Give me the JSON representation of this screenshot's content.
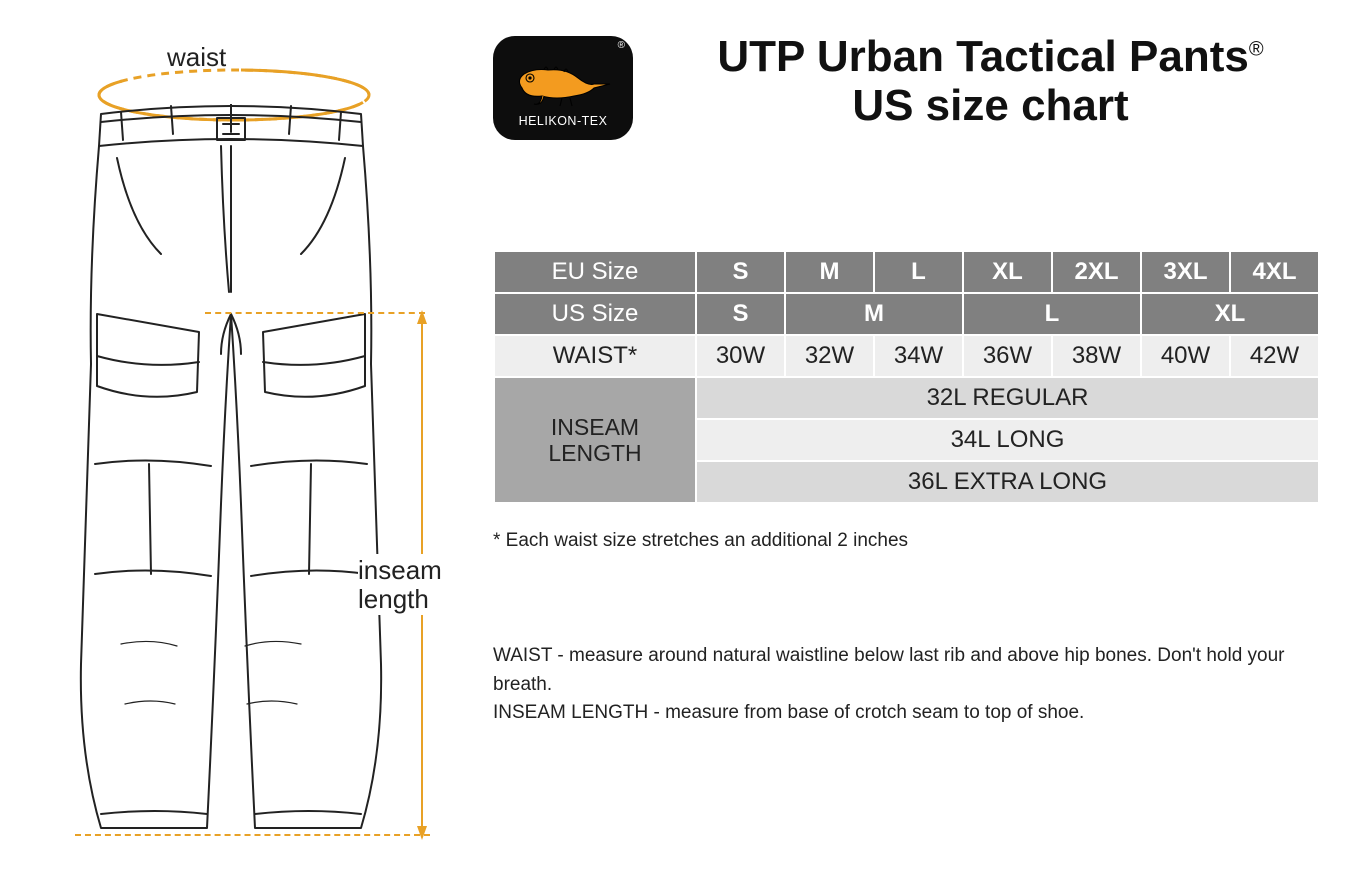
{
  "colors": {
    "accent": "#e8a126",
    "bg": "#ffffff",
    "text": "#222222",
    "table_header_bg": "#808080",
    "table_header_fg": "#ffffff",
    "table_light_bg": "#eeeeee",
    "table_mid_bg": "#d9d9d9",
    "table_label_bg": "#a7a7a7",
    "badge_bg": "#0d0d0d",
    "badge_fg": "#ffffff",
    "lizard_fill": "#f39b1f"
  },
  "diagram": {
    "waist_label": "waist",
    "inseam_label_line1": "inseam",
    "inseam_label_line2": "length"
  },
  "brand": {
    "name": "HELIKON-TEX",
    "registered": "®"
  },
  "title": {
    "line1_before_reg": "UTP Urban Tactical Pants",
    "reg": "®",
    "line2": "US size chart"
  },
  "table": {
    "label_eu": "EU Size",
    "label_us": "US Size",
    "label_waist": "WAIST*",
    "label_inseam_line1": "INSEAM",
    "label_inseam_line2": "LENGTH",
    "eu_sizes": [
      "S",
      "M",
      "L",
      "XL",
      "2XL",
      "3XL",
      "4XL"
    ],
    "us_sizes": [
      {
        "label": "S",
        "span": 1
      },
      {
        "label": "M",
        "span": 2
      },
      {
        "label": "L",
        "span": 2
      },
      {
        "label": "XL",
        "span": 2
      }
    ],
    "waist": [
      "30W",
      "32W",
      "34W",
      "36W",
      "38W",
      "40W",
      "42W"
    ],
    "inseam_rows": [
      "32L REGULAR",
      "34L LONG",
      "36L EXTRA LONG"
    ]
  },
  "footnote": "* Each waist size stretches an additional 2 inches",
  "instructions": {
    "waist": "WAIST - measure around natural waistline below last rib and above hip bones. Don't hold your breath.",
    "inseam": "INSEAM LENGTH - measure from base of crotch seam to top of shoe."
  }
}
